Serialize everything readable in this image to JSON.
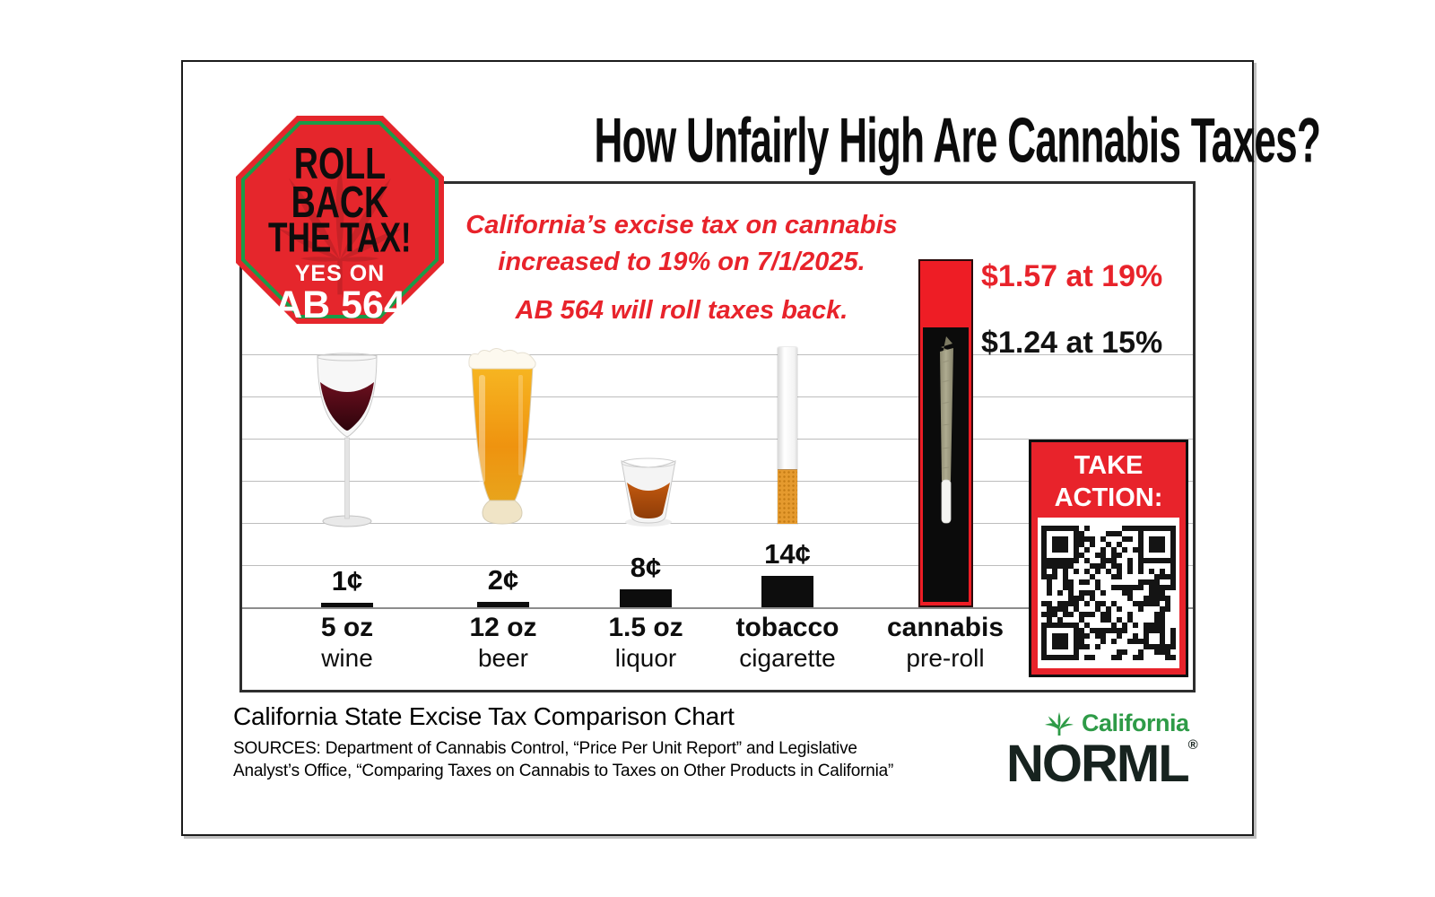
{
  "title": "How Unfairly High Are Cannabis Taxes?",
  "badge": {
    "roll": "ROLL",
    "back": "BACK",
    "the_tax": "THE TAX!",
    "yes_on": "YES ON",
    "ab": "AB 564"
  },
  "callout": {
    "line1": "California’s excise tax on cannabis",
    "line2": "increased to 19% on 7/1/2025.",
    "line3": "AB 564 will roll taxes back."
  },
  "chart_data": {
    "type": "bar",
    "title": "California State Excise Tax Comparison Chart",
    "categories": [
      "5 oz wine",
      "12 oz beer",
      "1.5 oz liquor",
      "tobacco cigarette",
      "cannabis pre-roll"
    ],
    "values_cents": [
      1,
      2,
      8,
      14,
      157
    ],
    "value_labels": [
      "1¢",
      "2¢",
      "8¢",
      "14¢",
      "$1.57 at 19%"
    ],
    "cannabis_overlay": {
      "label": "$1.24 at 15%",
      "value_cents": 124
    },
    "unit": "state excise tax per unit, US cents",
    "ylim_cents": [
      0,
      170
    ],
    "grid": true,
    "legend": "none",
    "annotations": [
      "California’s excise tax on cannabis increased to 19% on 7/1/2025.",
      "AB 564 will roll taxes back."
    ]
  },
  "items": [
    {
      "line1": "5 oz",
      "line2": "wine"
    },
    {
      "line1": "12 oz",
      "line2": "beer"
    },
    {
      "line1": "1.5 oz",
      "line2": "liquor"
    },
    {
      "line1": "tobacco",
      "line2": "cigarette"
    },
    {
      "line1": "cannabis",
      "line2": "pre-roll"
    }
  ],
  "take_action": {
    "line1": "TAKE",
    "line2": "ACTION:"
  },
  "footer": {
    "caption": "California State Excise Tax Comparison Chart",
    "sources_line1": "SOURCES: Department of Cannabis Control, “Price Per Unit Report” and Legislative",
    "sources_line2": "Analyst’s Office, “Comparing Taxes on Cannabis to Taxes on Other Products in California”",
    "logo": {
      "region": "California",
      "org": "NORML",
      "reg": "®"
    }
  },
  "colors": {
    "sign_red": "#e5262c",
    "sign_green": "#1a9b48",
    "accent_red": "#e8232b",
    "bar_black": "#0d0d0d",
    "logo_green": "#2e9b47",
    "logo_dark": "#17231f"
  }
}
